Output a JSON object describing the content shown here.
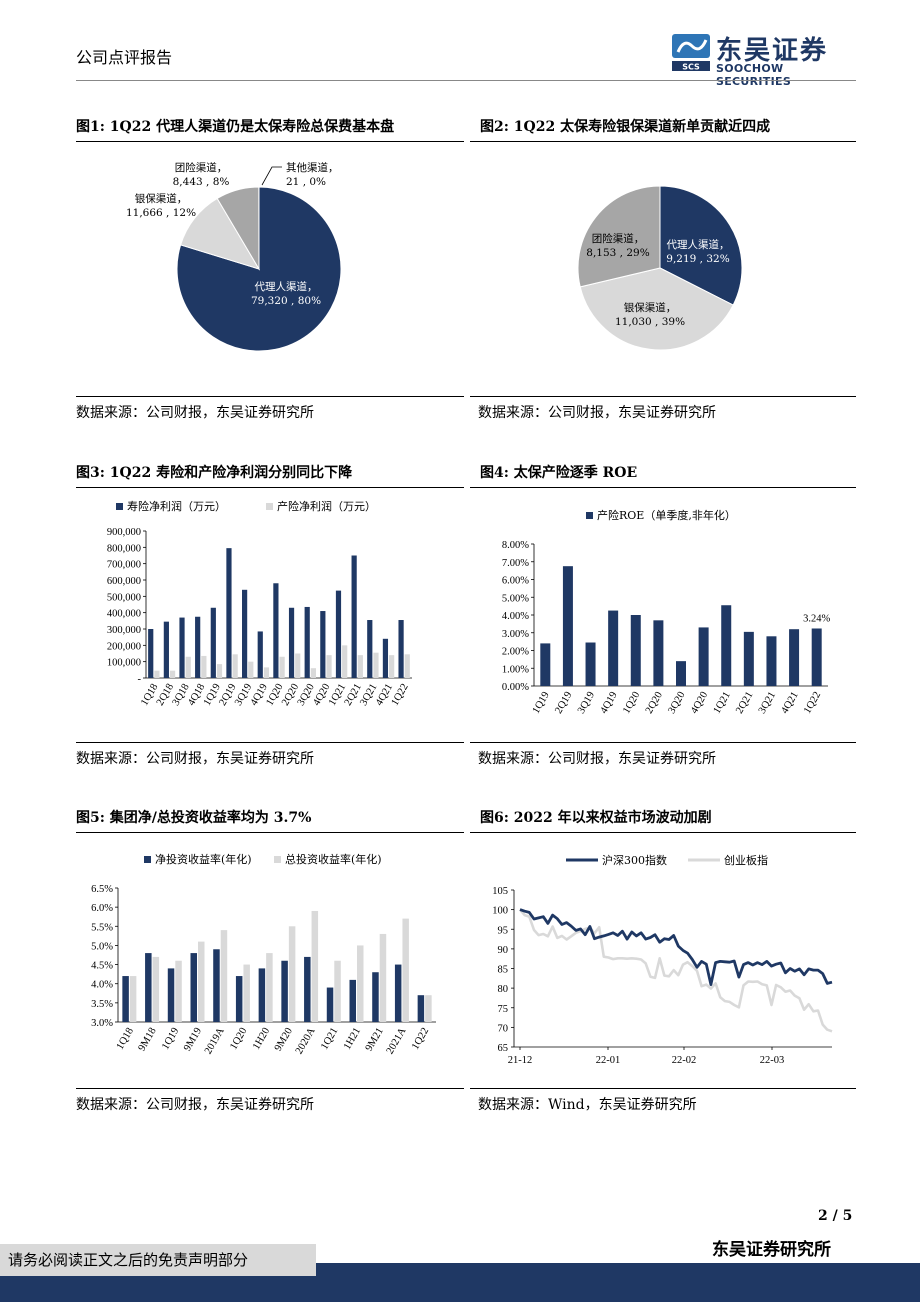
{
  "header": {
    "report_type": "公司点评报告",
    "brand_cn": "东吴证券",
    "brand_en": "SOOCHOW SECURITIES",
    "logo_badge": "SCS"
  },
  "figures": {
    "fig1": {
      "title": "图1:  1Q22 代理人渠道仍是太保寿险总保费基本盘",
      "source": "数据来源：公司财报，东吴证券研究所"
    },
    "fig2": {
      "title": "图2:  1Q22 太保寿险银保渠道新单贡献近四成",
      "source": "数据来源：公司财报，东吴证券研究所"
    },
    "fig3": {
      "title": "图3:  1Q22 寿险和产险净利润分别同比下降",
      "source": "数据来源：公司财报，东吴证券研究所"
    },
    "fig4": {
      "title": "图4:  太保产险逐季 ROE",
      "source": "数据来源：公司财报，东吴证券研究所"
    },
    "fig5": {
      "title": "图5:  集团净/总投资收益率均为 3.7%",
      "source": "数据来源：公司财报，东吴证券研究所"
    },
    "fig6": {
      "title": "图6:  2022 年以来权益市场波动加剧",
      "source": "数据来源：Wind，东吴证券研究所"
    }
  },
  "chart_data": [
    {
      "id": "fig1",
      "type": "pie",
      "slices": [
        {
          "name": "代理人渠道",
          "value": 79320,
          "pct": "80%",
          "color": "#1f3864"
        },
        {
          "name": "银保渠道",
          "value": 11666,
          "pct": "12%",
          "color": "#d9d9d9"
        },
        {
          "name": "团险渠道",
          "value": 8443,
          "pct": "8%",
          "color": "#a6a6a6"
        },
        {
          "name": "其他渠道",
          "value": 21,
          "pct": "0%",
          "color": "#7f7f7f"
        }
      ]
    },
    {
      "id": "fig2",
      "type": "pie",
      "slices": [
        {
          "name": "代理人渠道",
          "value": 9219,
          "pct": "32%",
          "color": "#1f3864"
        },
        {
          "name": "银保渠道",
          "value": 11030,
          "pct": "39%",
          "color": "#d9d9d9"
        },
        {
          "name": "团险渠道",
          "value": 8153,
          "pct": "29%",
          "color": "#a6a6a6"
        }
      ]
    },
    {
      "id": "fig3",
      "type": "bar",
      "categories": [
        "1Q18",
        "2Q18",
        "3Q18",
        "4Q18",
        "1Q19",
        "2Q19",
        "3Q19",
        "4Q19",
        "1Q20",
        "2Q20",
        "3Q20",
        "4Q20",
        "1Q21",
        "2Q21",
        "3Q21",
        "4Q21",
        "1Q22"
      ],
      "series": [
        {
          "name": "寿险净利润（万元）",
          "color": "#1f3864",
          "values": [
            300000,
            345000,
            370000,
            375000,
            430000,
            795000,
            540000,
            285000,
            580000,
            430000,
            435000,
            410000,
            535000,
            750000,
            355000,
            240000,
            355000
          ]
        },
        {
          "name": "产险净利润（万元）",
          "color": "#d9d9d9",
          "values": [
            45000,
            45000,
            130000,
            135000,
            85000,
            145000,
            100000,
            65000,
            130000,
            150000,
            60000,
            140000,
            200000,
            140000,
            155000,
            140000,
            145000
          ]
        }
      ],
      "ylim": [
        0,
        900000
      ],
      "yticks": [
        "-",
        "100,000",
        "200,000",
        "300,000",
        "400,000",
        "500,000",
        "600,000",
        "700,000",
        "800,000",
        "900,000"
      ]
    },
    {
      "id": "fig4",
      "type": "bar",
      "categories": [
        "1Q19",
        "2Q19",
        "3Q19",
        "4Q19",
        "1Q20",
        "2Q20",
        "3Q20",
        "4Q20",
        "1Q21",
        "2Q21",
        "3Q21",
        "4Q21",
        "1Q22"
      ],
      "series": [
        {
          "name": "产险ROE（单季度,非年化）",
          "color": "#1f3864",
          "values": [
            2.4,
            6.75,
            2.45,
            4.25,
            4.0,
            3.7,
            1.4,
            3.3,
            4.55,
            3.05,
            2.8,
            3.2,
            3.24
          ]
        }
      ],
      "ylim": [
        0,
        8
      ],
      "yticks": [
        "0.00%",
        "1.00%",
        "2.00%",
        "3.00%",
        "4.00%",
        "5.00%",
        "6.00%",
        "7.00%",
        "8.00%"
      ],
      "annotation": "3.24%"
    },
    {
      "id": "fig5",
      "type": "bar",
      "categories": [
        "1Q18",
        "9M18",
        "1Q19",
        "9M19",
        "2019A",
        "1Q20",
        "1H20",
        "9M20",
        "2020A",
        "1Q21",
        "1H21",
        "9M21",
        "2021A",
        "1Q22"
      ],
      "series": [
        {
          "name": "净投资收益率(年化)",
          "color": "#1f3864",
          "values": [
            4.2,
            4.8,
            4.4,
            4.8,
            4.9,
            4.2,
            4.4,
            4.6,
            4.7,
            3.9,
            4.1,
            4.3,
            4.5,
            3.7
          ]
        },
        {
          "name": "总投资收益率(年化)",
          "color": "#d9d9d9",
          "values": [
            4.2,
            4.7,
            4.6,
            5.1,
            5.4,
            4.5,
            4.8,
            5.5,
            5.9,
            4.6,
            5.0,
            5.3,
            5.7,
            3.7
          ]
        }
      ],
      "ylim": [
        3.0,
        6.5
      ],
      "yticks": [
        "3.0%",
        "3.5%",
        "4.0%",
        "4.5%",
        "5.0%",
        "5.5%",
        "6.0%",
        "6.5%"
      ]
    },
    {
      "id": "fig6",
      "type": "line",
      "x_ticks": [
        "21-12",
        "22-01",
        "22-02",
        "22-03"
      ],
      "ylim": [
        65,
        105
      ],
      "yticks": [
        "65",
        "70",
        "75",
        "80",
        "85",
        "90",
        "95",
        "100",
        "105"
      ],
      "series": [
        {
          "name": "沪深300指数",
          "color": "#1f3864",
          "values": [
            100,
            99.6,
            99.3,
            97.6,
            97.9,
            98.2,
            96.5,
            98.6,
            97.7,
            96.2,
            96.7,
            95.8,
            94.7,
            95.1,
            93.6,
            95.7,
            92.6,
            93.0,
            93.3,
            93.7,
            94.1,
            93.4,
            94.5,
            92.5,
            94.3,
            93.3,
            94.1,
            92.5,
            92.9,
            93.6,
            91.7,
            92.6,
            92.4,
            93.4,
            90.7,
            89.6,
            88.9,
            87.3,
            85.3,
            86.8,
            86.1,
            80.9,
            86.5,
            86.8,
            86.7,
            86.6,
            86.9,
            82.8,
            86.0,
            86.5,
            85.9,
            86.5,
            86.0,
            86.8,
            85.6,
            86.1,
            86.4,
            83.9,
            85.0,
            84.3,
            84.9,
            83.4,
            84.9,
            84.6,
            84.6,
            83.7,
            81.2,
            81.5
          ]
        },
        {
          "name": "创业板指",
          "color": "#d9d9d9",
          "values": [
            100,
            98.6,
            98.2,
            94.8,
            93.5,
            93.8,
            93.2,
            95.7,
            92.8,
            93.3,
            92.4,
            93.2,
            94.1,
            94.5,
            95.1,
            95.4,
            94.0,
            95.5,
            88.0,
            87.8,
            87.4,
            87.6,
            87.6,
            87.5,
            87.6,
            87.5,
            87.3,
            86.3,
            82.9,
            82.6,
            87.6,
            83.2,
            83.0,
            84.6,
            83.3,
            86.0,
            86.6,
            85.6,
            84.4,
            80.5,
            80.9,
            79.9,
            81.2,
            77.7,
            76.7,
            76.5,
            75.7,
            75.1,
            80.7,
            81.7,
            81.6,
            81.7,
            81.0,
            80.7,
            75.7,
            80.8,
            80.2,
            79.1,
            79.4,
            78.1,
            77.4,
            74.5,
            75.9,
            74.1,
            74.3,
            70.7,
            69.4,
            69.0
          ]
        }
      ]
    }
  ],
  "page": {
    "number": "2  /  5",
    "firm": "东吴证券研究所",
    "disclaimer": "请务必阅读正文之后的免责声明部分"
  }
}
